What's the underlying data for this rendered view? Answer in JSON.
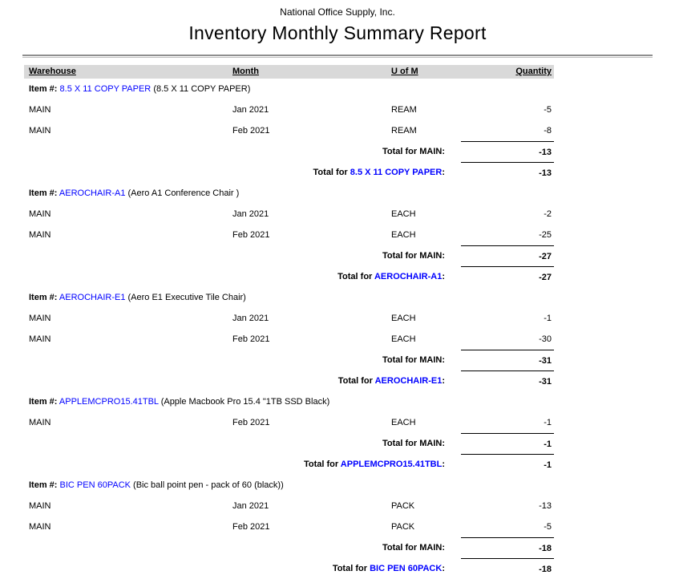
{
  "header": {
    "company": "National Office Supply, Inc.",
    "title": "Inventory Monthly Summary Report"
  },
  "labels": {
    "item_prefix": "Item #:",
    "total_for": "Total for",
    "colon": ":"
  },
  "columns": {
    "warehouse": "Warehouse",
    "month": "Month",
    "uofm": "U of M",
    "quantity": "Quantity"
  },
  "colors": {
    "link": "#0000ff",
    "header_band": "#d9d9d9"
  },
  "groups": [
    {
      "item_code": "8.5 X 11 COPY PAPER",
      "item_desc": "(8.5 X 11 COPY PAPER)",
      "rows": [
        {
          "warehouse": "MAIN",
          "month": "Jan 2021",
          "uofm": "REAM",
          "qty": "-5"
        },
        {
          "warehouse": "MAIN",
          "month": "Feb 2021",
          "uofm": "REAM",
          "qty": "-8"
        }
      ],
      "warehouse_total_label": "Total for MAIN:",
      "warehouse_total": "-13",
      "item_total": "-13"
    },
    {
      "item_code": "AEROCHAIR-A1",
      "item_desc": "(Aero A1 Conference Chair )",
      "rows": [
        {
          "warehouse": "MAIN",
          "month": "Jan 2021",
          "uofm": "EACH",
          "qty": "-2"
        },
        {
          "warehouse": "MAIN",
          "month": "Feb 2021",
          "uofm": "EACH",
          "qty": "-25"
        }
      ],
      "warehouse_total_label": "Total for MAIN:",
      "warehouse_total": "-27",
      "item_total": "-27"
    },
    {
      "item_code": "AEROCHAIR-E1",
      "item_desc": "(Aero E1 Executive Tile Chair)",
      "rows": [
        {
          "warehouse": "MAIN",
          "month": "Jan 2021",
          "uofm": "EACH",
          "qty": "-1"
        },
        {
          "warehouse": "MAIN",
          "month": "Feb 2021",
          "uofm": "EACH",
          "qty": "-30"
        }
      ],
      "warehouse_total_label": "Total for MAIN:",
      "warehouse_total": "-31",
      "item_total": "-31"
    },
    {
      "item_code": "APPLEMCPRO15.41TBL",
      "item_desc": "(Apple Macbook Pro 15.4 \"1TB SSD Black)",
      "rows": [
        {
          "warehouse": "MAIN",
          "month": "Feb 2021",
          "uofm": "EACH",
          "qty": "-1"
        }
      ],
      "warehouse_total_label": "Total for MAIN:",
      "warehouse_total": "-1",
      "item_total": "-1"
    },
    {
      "item_code": "BIC PEN 60PACK",
      "item_desc": "(Bic ball point pen - pack of 60 (black))",
      "rows": [
        {
          "warehouse": "MAIN",
          "month": "Jan 2021",
          "uofm": "PACK",
          "qty": "-13"
        },
        {
          "warehouse": "MAIN",
          "month": "Feb 2021",
          "uofm": "PACK",
          "qty": "-5"
        }
      ],
      "warehouse_total_label": "Total for MAIN:",
      "warehouse_total": "-18",
      "item_total": "-18"
    }
  ]
}
